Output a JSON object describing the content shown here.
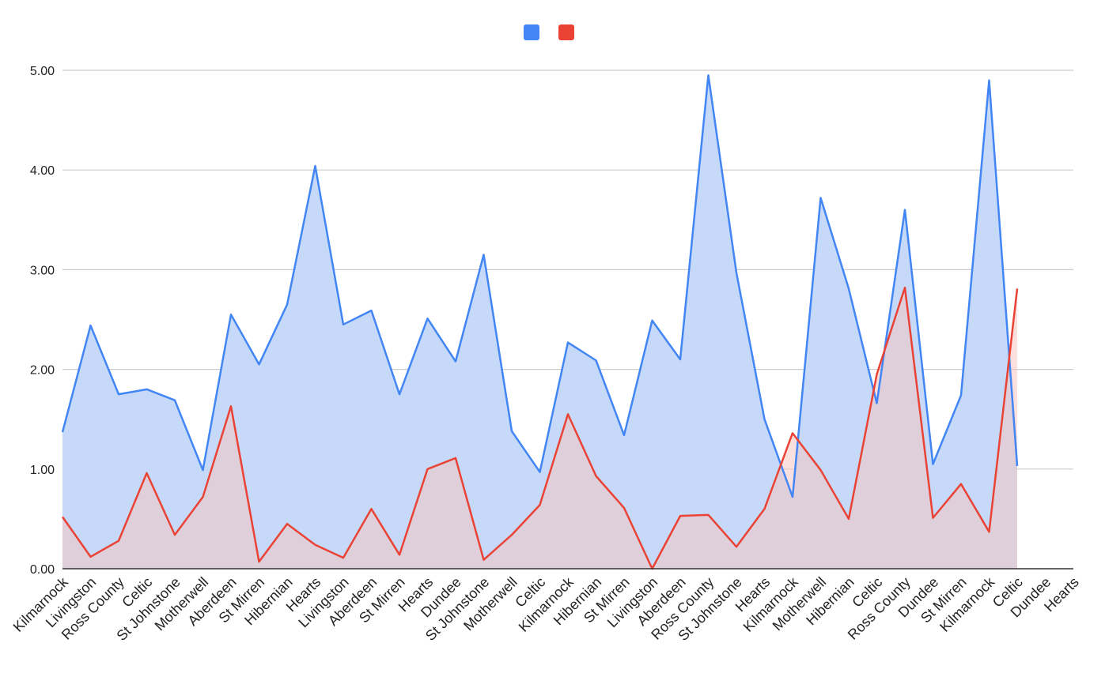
{
  "chart_data": {
    "type": "area",
    "title": "",
    "xlabel": "",
    "ylabel": "",
    "ylim": [
      0,
      5
    ],
    "yticks": [
      "0.00",
      "1.00",
      "2.00",
      "3.00",
      "4.00",
      "5.00"
    ],
    "grid": true,
    "legend": "top-center",
    "categories": [
      "Kilmarnock",
      "Livingston",
      "Ross County",
      "Celtic",
      "St Johnstone",
      "Motherwell",
      "Aberdeen",
      "St Mirren",
      "Hibernian",
      "Hearts",
      "Livingston",
      "Aberdeen",
      "St Mirren",
      "Hearts",
      "Dundee",
      "St Johnstone",
      "Motherwell",
      "Celtic",
      "Kilmarnock",
      "Hibernian",
      "St Mirren",
      "Livingston",
      "Aberdeen",
      "Ross County",
      "St Johnstone",
      "Hearts",
      "Kilmarnock",
      "Motherwell",
      "Hibernian",
      "Celtic",
      "Ross County",
      "Dundee",
      "St Mirren",
      "Kilmarnock",
      "Celtic",
      "Dundee",
      "Hearts"
    ],
    "series": [
      {
        "color": "#4285f4",
        "fill": "#c6d9f8",
        "values": [
          1.37,
          2.44,
          1.75,
          1.8,
          1.69,
          0.99,
          2.55,
          2.05,
          2.65,
          4.04,
          2.45,
          2.59,
          1.75,
          2.51,
          2.08,
          3.15,
          1.38,
          0.97,
          2.27,
          2.09,
          1.34,
          2.49,
          2.1,
          4.95,
          2.97,
          1.5,
          0.72,
          3.72,
          2.81,
          1.66,
          3.6,
          1.05,
          1.74,
          4.9,
          1.03,
          null,
          null
        ]
      },
      {
        "color": "#ea4335",
        "fill": "#f4c7c3",
        "values": [
          0.52,
          0.12,
          0.28,
          0.96,
          0.34,
          0.72,
          1.63,
          0.07,
          0.45,
          0.24,
          0.11,
          0.6,
          0.14,
          1.0,
          1.11,
          0.09,
          0.34,
          0.64,
          1.55,
          0.93,
          0.61,
          0.0,
          0.53,
          0.54,
          0.22,
          0.6,
          1.36,
          0.99,
          0.5,
          1.95,
          2.82,
          0.51,
          0.85,
          0.37,
          2.81,
          null,
          null
        ]
      }
    ]
  }
}
